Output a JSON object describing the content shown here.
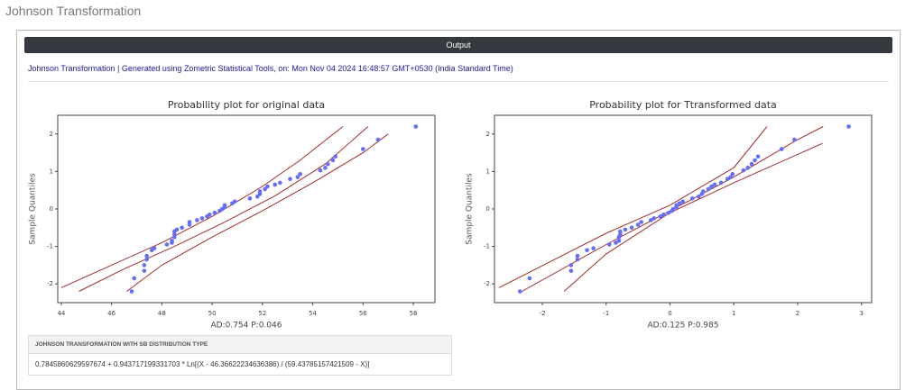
{
  "header": {
    "title": "Johnson Transformation"
  },
  "output": {
    "label": "Output",
    "info": "Johnson Transformation | Generated using Zometric Statistical Tools, on: Mon Nov 04 2024 16:48:57 GMT+0530 (India Standard Time)"
  },
  "chart_data": [
    {
      "type": "scatter",
      "title": "Probability plot for original data",
      "ylabel": "Sample Quantiles",
      "annotation": "AD:0.754 P:0.046",
      "xlim": [
        43.86,
        58.86
      ],
      "ylim": [
        -2.5,
        2.5
      ],
      "xticks": [
        44,
        46,
        48,
        50,
        52,
        54,
        56,
        58
      ],
      "yticks": [
        -2,
        -1,
        0,
        1,
        2
      ],
      "points": {
        "color": "#636efa",
        "x": [
          46.8,
          46.9,
          47.3,
          47.3,
          47.4,
          47.4,
          47.6,
          47.7,
          48.2,
          48.4,
          48.4,
          48.5,
          48.5,
          48.5,
          48.6,
          48.8,
          49.1,
          49.1,
          49.4,
          49.6,
          49.8,
          49.9,
          50.1,
          50.3,
          50.4,
          50.5,
          50.5,
          50.8,
          50.9,
          51.5,
          51.8,
          51.9,
          51.9,
          52.1,
          52.2,
          52.5,
          52.7,
          53.1,
          53.4,
          53.5,
          54.3,
          54.5,
          54.6,
          54.8,
          54.9,
          56.0,
          56.6,
          58.1
        ],
        "y": [
          -2.2,
          -1.85,
          -1.65,
          -1.5,
          -1.35,
          -1.25,
          -1.1,
          -1.05,
          -0.95,
          -0.9,
          -0.85,
          -0.75,
          -0.68,
          -0.6,
          -0.55,
          -0.5,
          -0.42,
          -0.35,
          -0.3,
          -0.25,
          -0.2,
          -0.15,
          -0.1,
          -0.05,
          0.0,
          0.05,
          0.1,
          0.15,
          0.2,
          0.28,
          0.33,
          0.4,
          0.47,
          0.53,
          0.6,
          0.65,
          0.7,
          0.8,
          0.85,
          0.93,
          1.03,
          1.1,
          1.2,
          1.3,
          1.4,
          1.6,
          1.85,
          2.2
        ]
      },
      "lines": [
        {
          "color": "#a52a2a",
          "x": [
            44.0,
            46.0,
            48.0,
            50.0,
            52.0,
            53.5,
            55.2
          ],
          "y": [
            -2.1,
            -1.5,
            -0.9,
            -0.2,
            0.6,
            1.3,
            2.2
          ]
        },
        {
          "color": "#a52a2a",
          "x": [
            44.7,
            46.5,
            48.5,
            50.5,
            52.5,
            54.5,
            56.2
          ],
          "y": [
            -2.2,
            -1.6,
            -1.0,
            -0.35,
            0.35,
            1.2,
            2.2
          ]
        },
        {
          "color": "#a52a2a",
          "x": [
            46.6,
            48.0,
            50.0,
            52.0,
            54.0,
            56.0,
            57.0
          ],
          "y": [
            -2.2,
            -1.5,
            -0.75,
            -0.05,
            0.7,
            1.5,
            2.0
          ]
        }
      ],
      "grid": false
    },
    {
      "type": "scatter",
      "title": "Probability plot for Ttransformed data",
      "ylabel": "Sample Quantiles",
      "annotation": "AD:0.125 P:0.985",
      "xlim": [
        -2.75,
        3.16
      ],
      "ylim": [
        -2.5,
        2.5
      ],
      "xticks": [
        -2,
        -1,
        0,
        1,
        2,
        3
      ],
      "yticks": [
        -2,
        -1,
        0,
        1,
        2
      ],
      "points": {
        "color": "#636efa",
        "x": [
          -2.35,
          -2.2,
          -1.55,
          -1.55,
          -1.45,
          -1.45,
          -1.3,
          -1.2,
          -0.95,
          -0.85,
          -0.8,
          -0.8,
          -0.78,
          -0.78,
          -0.7,
          -0.6,
          -0.5,
          -0.45,
          -0.3,
          -0.25,
          -0.15,
          -0.1,
          -0.02,
          0.03,
          0.05,
          0.1,
          0.1,
          0.15,
          0.2,
          0.35,
          0.45,
          0.5,
          0.52,
          0.6,
          0.65,
          0.7,
          0.8,
          0.9,
          0.95,
          0.98,
          1.15,
          1.22,
          1.28,
          1.33,
          1.38,
          1.75,
          1.95,
          2.8
        ],
        "y": [
          -2.2,
          -1.85,
          -1.65,
          -1.5,
          -1.35,
          -1.25,
          -1.1,
          -1.05,
          -0.95,
          -0.9,
          -0.85,
          -0.75,
          -0.68,
          -0.6,
          -0.55,
          -0.5,
          -0.42,
          -0.35,
          -0.3,
          -0.25,
          -0.2,
          -0.15,
          -0.1,
          -0.05,
          0.0,
          0.05,
          0.1,
          0.15,
          0.2,
          0.28,
          0.33,
          0.4,
          0.47,
          0.53,
          0.6,
          0.65,
          0.7,
          0.8,
          0.85,
          0.93,
          1.03,
          1.1,
          1.2,
          1.3,
          1.4,
          1.6,
          1.85,
          2.2
        ]
      },
      "lines": [
        {
          "color": "#a52a2a",
          "x": [
            -2.68,
            -1.0,
            0.0,
            1.0,
            1.52
          ],
          "y": [
            -2.1,
            -0.65,
            0.1,
            1.1,
            2.2
          ]
        },
        {
          "color": "#a52a2a",
          "x": [
            -2.32,
            -1.0,
            0.0,
            1.0,
            2.0,
            2.4
          ],
          "y": [
            -2.2,
            -0.95,
            -0.05,
            0.85,
            1.85,
            2.2
          ]
        },
        {
          "color": "#a52a2a",
          "x": [
            -1.66,
            -1.0,
            0.0,
            1.0,
            2.39
          ],
          "y": [
            -2.2,
            -1.2,
            -0.1,
            0.7,
            1.75
          ]
        }
      ],
      "grid": false
    }
  ],
  "table": {
    "header": "JOHNSON TRANSFORMATION WITH SB DISTRIBUTION TYPE",
    "rows": [
      [
        "0.7845860629597674 + 0.943717199331703 * Ln[(X - 46.36622234636386) / (59.43785157421509 - X)]"
      ]
    ]
  }
}
